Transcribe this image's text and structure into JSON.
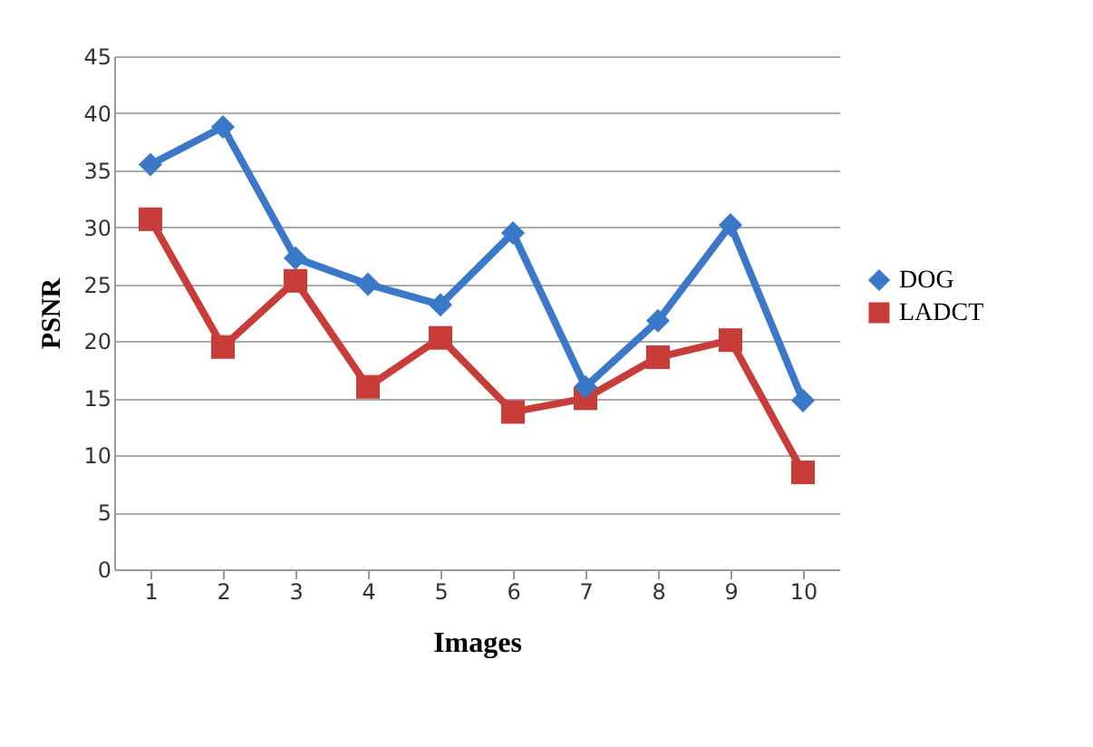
{
  "chart_data": {
    "type": "line",
    "xlabel": "Images",
    "ylabel": "PSNR",
    "categories": [
      "1",
      "2",
      "3",
      "4",
      "5",
      "6",
      "7",
      "8",
      "9",
      "10"
    ],
    "series": [
      {
        "name": "DOG",
        "color": "#3c78c8",
        "marker": "diamond",
        "values": [
          35.5,
          38.8,
          27.3,
          25,
          23.2,
          29.5,
          16,
          21.8,
          30.2,
          14.8
        ]
      },
      {
        "name": "LADCT",
        "color": "#c83c3a",
        "marker": "square",
        "values": [
          30.7,
          19.5,
          25.3,
          16,
          20.3,
          13.8,
          15,
          18.6,
          20.1,
          8.5
        ]
      }
    ],
    "ylim": [
      0,
      45
    ],
    "yticks": [
      0,
      5,
      10,
      15,
      20,
      25,
      30,
      35,
      40,
      45
    ],
    "grid": "y",
    "legend": "right",
    "line_style": "solid"
  }
}
